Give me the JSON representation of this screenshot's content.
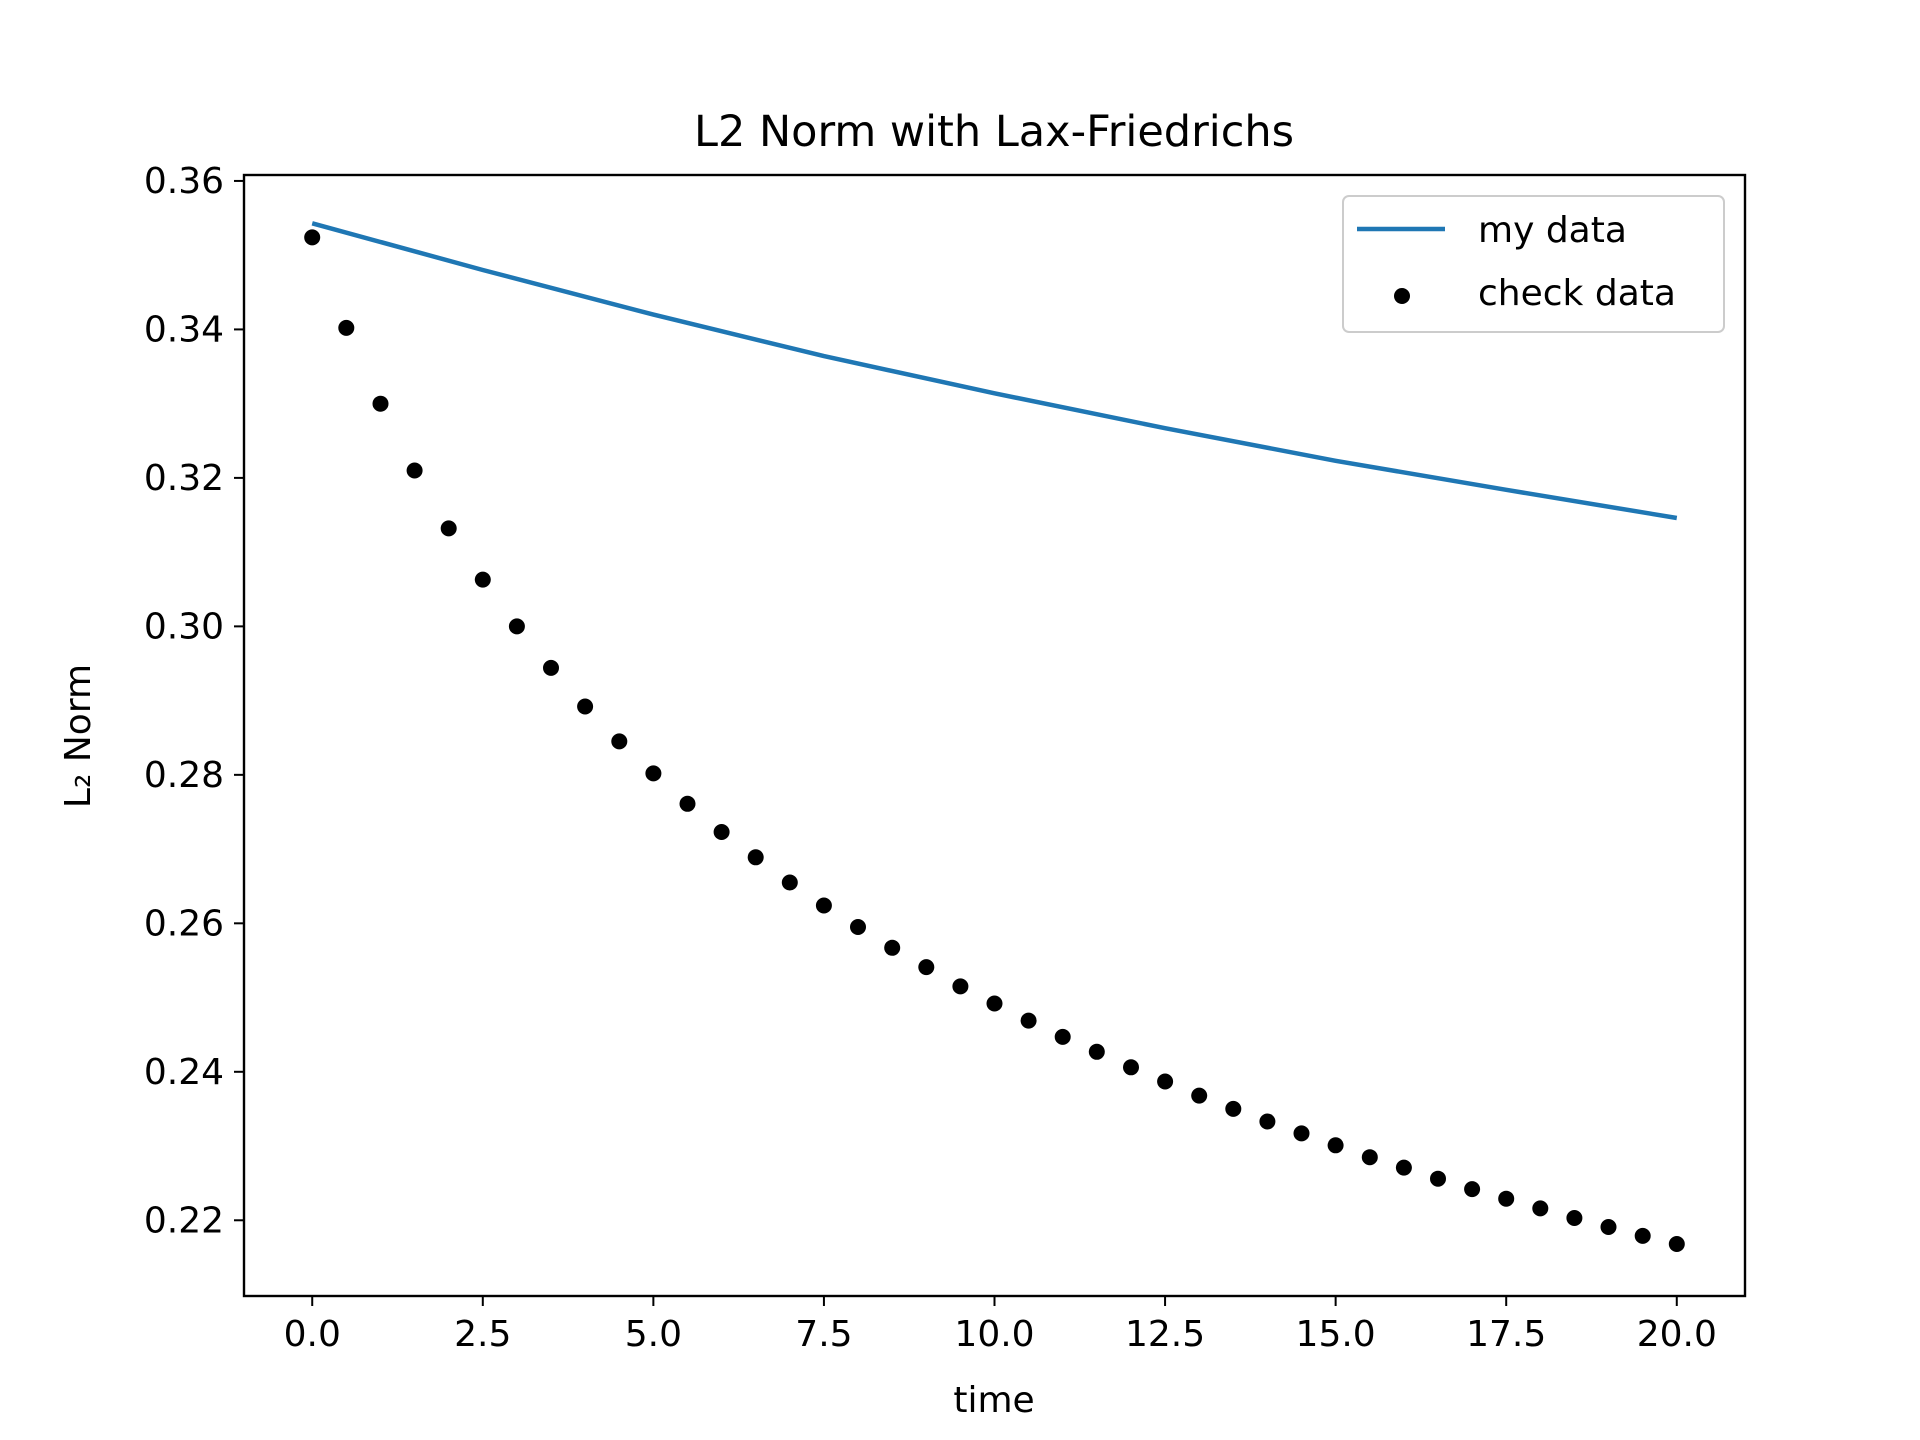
{
  "chart_data": {
    "type": "line",
    "title": "L2 Norm with Lax-Friedrichs",
    "xlabel": "time",
    "ylabel": "L₂ Norm",
    "xlim": [
      -1.0,
      21.0
    ],
    "ylim": [
      0.2098,
      0.3608
    ],
    "xticks": [
      0.0,
      2.5,
      5.0,
      7.5,
      10.0,
      12.5,
      15.0,
      17.5,
      20.0
    ],
    "xtick_labels": [
      "0.0",
      "2.5",
      "5.0",
      "7.5",
      "10.0",
      "12.5",
      "15.0",
      "17.5",
      "20.0"
    ],
    "yticks": [
      0.22,
      0.24,
      0.26,
      0.28,
      0.3,
      0.32,
      0.34,
      0.36
    ],
    "ytick_labels": [
      "0.22",
      "0.24",
      "0.26",
      "0.28",
      "0.30",
      "0.32",
      "0.34",
      "0.36"
    ],
    "grid": false,
    "legend_position": "top-right",
    "series": [
      {
        "name": "my data",
        "kind": "line",
        "color": "#1f77b4",
        "x": [
          0.0,
          2.5,
          5.0,
          7.5,
          10.0,
          12.5,
          15.0,
          17.5,
          20.0
        ],
        "y": [
          0.3543,
          0.348,
          0.342,
          0.3364,
          0.3314,
          0.3267,
          0.3223,
          0.3184,
          0.3146
        ]
      },
      {
        "name": "check data",
        "kind": "scatter",
        "color": "#000000",
        "x": [
          0.0,
          0.5,
          1.0,
          1.5,
          2.0,
          2.5,
          3.0,
          3.5,
          4.0,
          4.5,
          5.0,
          5.5,
          6.0,
          6.5,
          7.0,
          7.5,
          8.0,
          8.5,
          9.0,
          9.5,
          10.0,
          10.5,
          11.0,
          11.5,
          12.0,
          12.5,
          13.0,
          13.5,
          14.0,
          14.5,
          15.0,
          15.5,
          16.0,
          16.5,
          17.0,
          17.5,
          18.0,
          18.5,
          19.0,
          19.5,
          20.0
        ],
        "y": [
          0.3524,
          0.3402,
          0.33,
          0.321,
          0.3132,
          0.3063,
          0.3,
          0.2944,
          0.2892,
          0.2845,
          0.2802,
          0.2761,
          0.2723,
          0.2689,
          0.2655,
          0.2624,
          0.2595,
          0.2567,
          0.2541,
          0.2515,
          0.2492,
          0.2469,
          0.2447,
          0.2427,
          0.2406,
          0.2387,
          0.2368,
          0.235,
          0.2333,
          0.2317,
          0.2301,
          0.2285,
          0.2271,
          0.2256,
          0.2242,
          0.2229,
          0.2216,
          0.2203,
          0.2191,
          0.2179,
          0.2168
        ]
      }
    ]
  }
}
